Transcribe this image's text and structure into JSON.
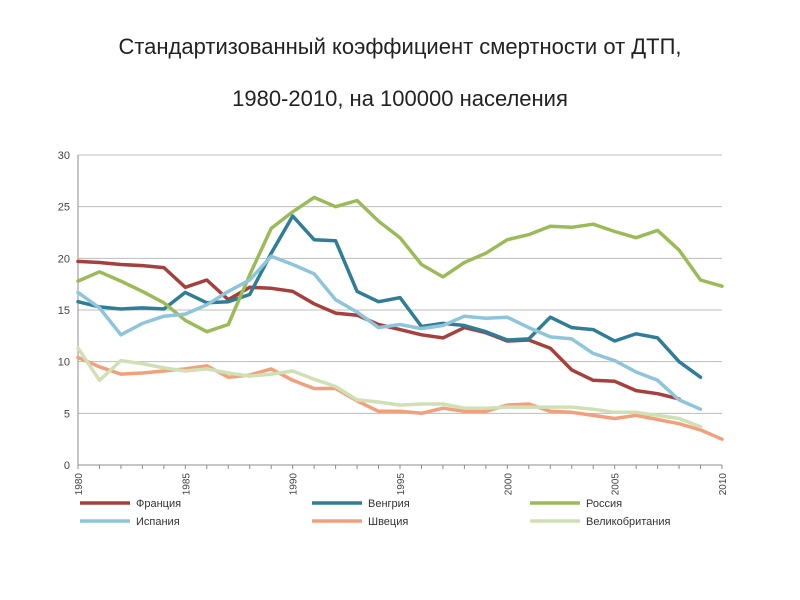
{
  "title_line1": "Стандартизованный коэффициент смертности от ДТП,",
  "title_line2": "1980-2010, на 100000 населения",
  "chart_data": {
    "type": "line",
    "title": "Стандартизованный коэффициент смертности от ДТП, 1980-2010, на 100000 населения",
    "xlabel": "",
    "ylabel": "",
    "ylim": [
      0,
      30
    ],
    "xlim": [
      1980,
      2010
    ],
    "yticks": [
      0,
      5,
      10,
      15,
      20,
      25,
      30
    ],
    "xticks": [
      1980,
      1985,
      1990,
      1995,
      2000,
      2005,
      2010
    ],
    "grid": "horizontal",
    "legend_position": "bottom",
    "x": [
      1980,
      1981,
      1982,
      1983,
      1984,
      1985,
      1986,
      1987,
      1988,
      1989,
      1990,
      1991,
      1992,
      1993,
      1994,
      1995,
      1996,
      1997,
      1998,
      1999,
      2000,
      2001,
      2002,
      2003,
      2004,
      2005,
      2006,
      2007,
      2008,
      2009,
      2010
    ],
    "series": [
      {
        "name": "Франция",
        "color": "#a6403c",
        "values": [
          19.7,
          19.6,
          19.4,
          19.3,
          19.1,
          17.2,
          17.9,
          16.0,
          17.2,
          17.1,
          16.8,
          15.6,
          14.7,
          14.5,
          13.6,
          13.1,
          12.6,
          12.3,
          13.3,
          12.8,
          12.0,
          12.1,
          11.3,
          9.2,
          8.2,
          8.1,
          7.2,
          6.9,
          6.4,
          null,
          null
        ]
      },
      {
        "name": "Венгрия",
        "color": "#2f7d96",
        "values": [
          15.8,
          15.3,
          15.1,
          15.2,
          15.1,
          16.7,
          15.7,
          15.8,
          16.5,
          20.5,
          24.1,
          21.8,
          21.7,
          16.8,
          15.8,
          16.2,
          13.4,
          13.7,
          13.5,
          12.9,
          12.1,
          12.2,
          14.3,
          13.3,
          13.1,
          12.0,
          12.7,
          12.3,
          10.0,
          8.5,
          null
        ]
      },
      {
        "name": "Россия",
        "color": "#9bbb59",
        "values": [
          17.8,
          18.7,
          17.8,
          16.8,
          15.7,
          14.0,
          12.9,
          13.6,
          18.4,
          22.9,
          24.5,
          25.9,
          25.0,
          25.6,
          23.6,
          22.0,
          19.4,
          18.2,
          19.6,
          20.5,
          21.8,
          22.3,
          23.1,
          23.0,
          23.3,
          22.6,
          22.0,
          22.7,
          20.8,
          17.9,
          17.3
        ]
      },
      {
        "name": "Испания",
        "color": "#8ec5da",
        "values": [
          16.7,
          15.2,
          12.6,
          13.7,
          14.4,
          14.6,
          15.5,
          16.8,
          17.9,
          20.2,
          19.4,
          18.5,
          16.0,
          14.8,
          13.3,
          13.6,
          13.2,
          13.5,
          14.4,
          14.2,
          14.3,
          13.3,
          12.4,
          12.2,
          10.8,
          10.1,
          9.0,
          8.2,
          6.3,
          5.4,
          null
        ]
      },
      {
        "name": "Швеция",
        "color": "#f2a07b",
        "values": [
          10.4,
          9.5,
          8.8,
          8.9,
          9.1,
          9.3,
          9.6,
          8.5,
          8.7,
          9.3,
          8.2,
          7.4,
          7.4,
          6.2,
          5.2,
          5.2,
          5.0,
          5.5,
          5.2,
          5.2,
          5.8,
          5.9,
          5.2,
          5.1,
          4.8,
          4.5,
          4.8,
          4.4,
          4.0,
          3.4,
          2.5
        ]
      },
      {
        "name": "Великобритания",
        "color": "#cfe0b4",
        "values": [
          11.3,
          8.2,
          10.1,
          9.8,
          9.4,
          9.1,
          9.3,
          8.9,
          8.6,
          8.8,
          9.1,
          8.3,
          7.6,
          6.3,
          6.1,
          5.8,
          5.9,
          5.9,
          5.5,
          5.5,
          5.6,
          5.6,
          5.6,
          5.6,
          5.4,
          5.1,
          5.1,
          4.8,
          4.5,
          3.7,
          null
        ]
      }
    ]
  }
}
